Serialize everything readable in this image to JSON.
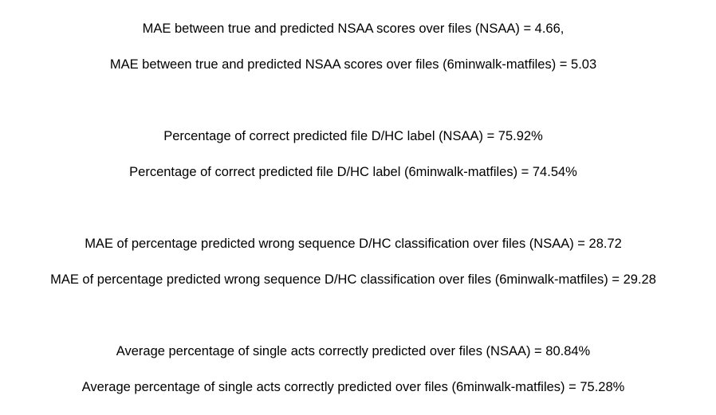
{
  "results": [
    {
      "nsaa": "MAE between true and predicted NSAA scores over files (NSAA) = 4.66,",
      "matfiles": "MAE between true and predicted NSAA scores over files (6minwalk-matfiles) = 5.03"
    },
    {
      "nsaa": "Percentage of correct predicted file D/HC label (NSAA) = 75.92%",
      "matfiles": "Percentage of correct predicted file D/HC label (6minwalk-matfiles) = 74.54%"
    },
    {
      "nsaa": "MAE of percentage predicted wrong sequence D/HC classification over files (NSAA) = 28.72",
      "matfiles": "MAE of percentage predicted wrong sequence D/HC classification over files (6minwalk-matfiles) = 29.28"
    },
    {
      "nsaa": "Average percentage of single acts correctly predicted over files (NSAA) = 80.84%",
      "matfiles": "Average percentage of single acts correctly predicted over files (6minwalk-matfiles) = 75.28%"
    }
  ]
}
